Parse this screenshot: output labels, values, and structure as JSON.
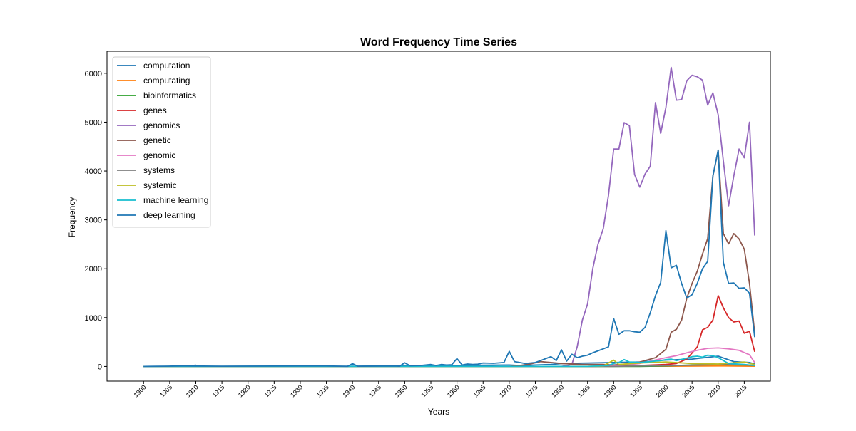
{
  "chart_data": {
    "type": "line",
    "title": "Word Frequency Time Series",
    "xlabel": "Years",
    "ylabel": "Frequency",
    "xlim": [
      1893,
      2020
    ],
    "ylim": [
      -300,
      6450
    ],
    "x_ticks": [
      1900,
      1905,
      1910,
      1915,
      1920,
      1925,
      1930,
      1935,
      1940,
      1945,
      1950,
      1955,
      1960,
      1965,
      1970,
      1975,
      1980,
      1985,
      1990,
      1995,
      2000,
      2005,
      2010,
      2015
    ],
    "y_ticks": [
      0,
      1000,
      2000,
      3000,
      4000,
      5000,
      6000
    ],
    "legend_position": "top-left",
    "grid": false,
    "series": [
      {
        "name": "computation",
        "color": "#1f77b4",
        "points": [
          [
            1900,
            0
          ],
          [
            1905,
            5
          ],
          [
            1907,
            20
          ],
          [
            1909,
            15
          ],
          [
            1910,
            25
          ],
          [
            1911,
            0
          ],
          [
            1920,
            5
          ],
          [
            1930,
            5
          ],
          [
            1940,
            5
          ],
          [
            1950,
            10
          ],
          [
            1960,
            15
          ],
          [
            1965,
            25
          ],
          [
            1970,
            30
          ],
          [
            1972,
            20
          ],
          [
            1975,
            30
          ],
          [
            1978,
            40
          ],
          [
            1980,
            60
          ],
          [
            1985,
            70
          ],
          [
            1990,
            80
          ],
          [
            1995,
            90
          ],
          [
            2000,
            130
          ],
          [
            2005,
            150
          ],
          [
            2010,
            210
          ],
          [
            2013,
            100
          ],
          [
            2016,
            80
          ],
          [
            2017,
            50
          ]
        ]
      },
      {
        "name": "computating",
        "color": "#ff7f0e",
        "points": [
          [
            1900,
            0
          ],
          [
            1980,
            0
          ],
          [
            1990,
            5
          ],
          [
            2000,
            5
          ],
          [
            2010,
            10
          ],
          [
            2017,
            5
          ]
        ]
      },
      {
        "name": "bioinformatics",
        "color": "#2ca02c",
        "points": [
          [
            1900,
            0
          ],
          [
            1995,
            0
          ],
          [
            2000,
            10
          ],
          [
            2005,
            30
          ],
          [
            2010,
            40
          ],
          [
            2015,
            30
          ],
          [
            2017,
            20
          ]
        ]
      },
      {
        "name": "genes",
        "color": "#d62728",
        "points": [
          [
            1900,
            0
          ],
          [
            1985,
            0
          ],
          [
            1990,
            10
          ],
          [
            1995,
            20
          ],
          [
            2000,
            40
          ],
          [
            2002,
            60
          ],
          [
            2004,
            150
          ],
          [
            2006,
            400
          ],
          [
            2007,
            750
          ],
          [
            2008,
            800
          ],
          [
            2009,
            950
          ],
          [
            2010,
            1450
          ],
          [
            2011,
            1200
          ],
          [
            2012,
            1000
          ],
          [
            2013,
            910
          ],
          [
            2014,
            930
          ],
          [
            2015,
            680
          ],
          [
            2016,
            720
          ],
          [
            2017,
            300
          ]
        ]
      },
      {
        "name": "genomics",
        "color": "#9467bd",
        "points": [
          [
            1900,
            0
          ],
          [
            1980,
            0
          ],
          [
            1982,
            40
          ],
          [
            1983,
            400
          ],
          [
            1984,
            950
          ],
          [
            1985,
            1280
          ],
          [
            1986,
            2000
          ],
          [
            1987,
            2500
          ],
          [
            1988,
            2820
          ],
          [
            1989,
            3500
          ],
          [
            1990,
            4450
          ],
          [
            1991,
            4450
          ],
          [
            1992,
            4990
          ],
          [
            1993,
            4930
          ],
          [
            1994,
            3930
          ],
          [
            1995,
            3670
          ],
          [
            1996,
            3940
          ],
          [
            1997,
            4100
          ],
          [
            1998,
            5400
          ],
          [
            1999,
            4770
          ],
          [
            2000,
            5300
          ],
          [
            2001,
            6120
          ],
          [
            2002,
            5450
          ],
          [
            2003,
            5460
          ],
          [
            2004,
            5850
          ],
          [
            2005,
            5960
          ],
          [
            2006,
            5930
          ],
          [
            2007,
            5860
          ],
          [
            2008,
            5350
          ],
          [
            2009,
            5600
          ],
          [
            2010,
            5150
          ],
          [
            2011,
            4200
          ],
          [
            2012,
            3290
          ],
          [
            2013,
            3900
          ],
          [
            2014,
            4450
          ],
          [
            2015,
            4270
          ],
          [
            2016,
            5000
          ],
          [
            2017,
            2680
          ]
        ]
      },
      {
        "name": "genetic",
        "color": "#8c564b",
        "points": [
          [
            1900,
            0
          ],
          [
            1970,
            0
          ],
          [
            1972,
            20
          ],
          [
            1974,
            50
          ],
          [
            1976,
            100
          ],
          [
            1978,
            80
          ],
          [
            1980,
            60
          ],
          [
            1984,
            40
          ],
          [
            1988,
            40
          ],
          [
            1990,
            30
          ],
          [
            1994,
            60
          ],
          [
            1998,
            180
          ],
          [
            2000,
            350
          ],
          [
            2001,
            700
          ],
          [
            2002,
            760
          ],
          [
            2003,
            950
          ],
          [
            2004,
            1400
          ],
          [
            2005,
            1700
          ],
          [
            2006,
            1950
          ],
          [
            2007,
            2300
          ],
          [
            2008,
            2620
          ],
          [
            2009,
            3900
          ],
          [
            2010,
            4420
          ],
          [
            2011,
            2720
          ],
          [
            2012,
            2510
          ],
          [
            2013,
            2720
          ],
          [
            2014,
            2610
          ],
          [
            2015,
            2400
          ],
          [
            2016,
            1700
          ],
          [
            2017,
            680
          ]
        ]
      },
      {
        "name": "genomic",
        "color": "#e377c2",
        "points": [
          [
            1900,
            0
          ],
          [
            1985,
            0
          ],
          [
            1990,
            10
          ],
          [
            1995,
            60
          ],
          [
            2000,
            180
          ],
          [
            2002,
            220
          ],
          [
            2004,
            280
          ],
          [
            2006,
            330
          ],
          [
            2008,
            370
          ],
          [
            2010,
            380
          ],
          [
            2012,
            360
          ],
          [
            2014,
            330
          ],
          [
            2016,
            240
          ],
          [
            2017,
            80
          ]
        ]
      },
      {
        "name": "systems",
        "color": "#7f7f7f",
        "points": [
          [
            1900,
            0
          ],
          [
            1990,
            0
          ],
          [
            1995,
            10
          ],
          [
            2000,
            15
          ],
          [
            2005,
            25
          ],
          [
            2010,
            35
          ],
          [
            2015,
            30
          ],
          [
            2017,
            20
          ]
        ]
      },
      {
        "name": "systemic",
        "color": "#bcbd22",
        "points": [
          [
            1900,
            0
          ],
          [
            1985,
            0
          ],
          [
            1988,
            10
          ],
          [
            1990,
            130
          ],
          [
            1991,
            40
          ],
          [
            1995,
            70
          ],
          [
            2000,
            90
          ],
          [
            2005,
            60
          ],
          [
            2010,
            50
          ],
          [
            2015,
            90
          ],
          [
            2017,
            40
          ]
        ]
      },
      {
        "name": "machine learning",
        "color": "#17becf",
        "points": [
          [
            1900,
            0
          ],
          [
            1985,
            0
          ],
          [
            1989,
            20
          ],
          [
            1990,
            60
          ],
          [
            1991,
            80
          ],
          [
            1992,
            140
          ],
          [
            1993,
            90
          ],
          [
            1995,
            80
          ],
          [
            1997,
            100
          ],
          [
            1999,
            120
          ],
          [
            2000,
            140
          ],
          [
            2001,
            150
          ],
          [
            2002,
            120
          ],
          [
            2004,
            170
          ],
          [
            2005,
            200
          ],
          [
            2006,
            210
          ],
          [
            2007,
            190
          ],
          [
            2008,
            230
          ],
          [
            2009,
            220
          ],
          [
            2010,
            180
          ],
          [
            2011,
            120
          ],
          [
            2012,
            60
          ],
          [
            2015,
            40
          ],
          [
            2017,
            20
          ]
        ]
      },
      {
        "name": "deep learning",
        "color": "#1f77b4",
        "points": [
          [
            1900,
            0
          ],
          [
            1904,
            5
          ],
          [
            1908,
            10
          ],
          [
            1915,
            5
          ],
          [
            1930,
            10
          ],
          [
            1935,
            10
          ],
          [
            1939,
            0
          ],
          [
            1940,
            55
          ],
          [
            1941,
            5
          ],
          [
            1948,
            10
          ],
          [
            1949,
            5
          ],
          [
            1950,
            75
          ],
          [
            1951,
            15
          ],
          [
            1953,
            20
          ],
          [
            1955,
            40
          ],
          [
            1956,
            20
          ],
          [
            1957,
            40
          ],
          [
            1958,
            30
          ],
          [
            1959,
            35
          ],
          [
            1960,
            160
          ],
          [
            1961,
            30
          ],
          [
            1962,
            50
          ],
          [
            1963,
            40
          ],
          [
            1964,
            45
          ],
          [
            1965,
            70
          ],
          [
            1967,
            65
          ],
          [
            1969,
            80
          ],
          [
            1970,
            310
          ],
          [
            1971,
            100
          ],
          [
            1972,
            80
          ],
          [
            1973,
            60
          ],
          [
            1974,
            70
          ],
          [
            1975,
            80
          ],
          [
            1976,
            120
          ],
          [
            1977,
            160
          ],
          [
            1978,
            200
          ],
          [
            1979,
            120
          ],
          [
            1980,
            340
          ],
          [
            1981,
            110
          ],
          [
            1982,
            250
          ],
          [
            1983,
            180
          ],
          [
            1984,
            210
          ],
          [
            1985,
            230
          ],
          [
            1986,
            280
          ],
          [
            1987,
            320
          ],
          [
            1988,
            360
          ],
          [
            1989,
            400
          ],
          [
            1990,
            980
          ],
          [
            1991,
            660
          ],
          [
            1992,
            730
          ],
          [
            1993,
            730
          ],
          [
            1994,
            710
          ],
          [
            1995,
            700
          ],
          [
            1996,
            800
          ],
          [
            1997,
            1100
          ],
          [
            1998,
            1450
          ],
          [
            1999,
            1720
          ],
          [
            2000,
            2780
          ],
          [
            2001,
            2020
          ],
          [
            2002,
            2070
          ],
          [
            2003,
            1700
          ],
          [
            2004,
            1400
          ],
          [
            2005,
            1470
          ],
          [
            2006,
            1700
          ],
          [
            2007,
            2000
          ],
          [
            2008,
            2150
          ],
          [
            2009,
            3900
          ],
          [
            2010,
            4430
          ],
          [
            2011,
            2130
          ],
          [
            2012,
            1700
          ],
          [
            2013,
            1710
          ],
          [
            2014,
            1600
          ],
          [
            2015,
            1610
          ],
          [
            2016,
            1500
          ],
          [
            2017,
            600
          ]
        ]
      }
    ]
  }
}
